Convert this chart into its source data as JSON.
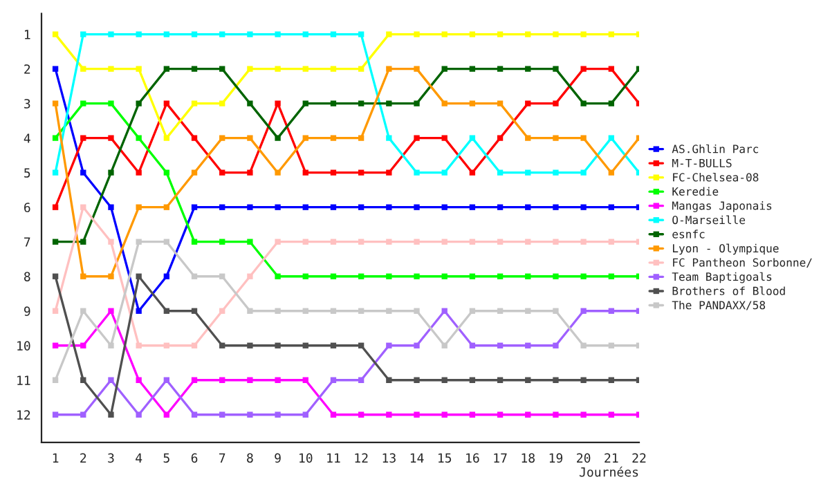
{
  "chart_data": {
    "type": "line",
    "xlabel": "Journées",
    "x": [
      1,
      2,
      3,
      4,
      5,
      6,
      7,
      8,
      9,
      10,
      11,
      12,
      13,
      14,
      15,
      16,
      17,
      18,
      19,
      20,
      21,
      22
    ],
    "xlim": [
      0.5,
      22
    ],
    "xticks": [
      1,
      2,
      3,
      4,
      5,
      6,
      7,
      8,
      9,
      10,
      11,
      12,
      13,
      14,
      15,
      16,
      17,
      18,
      19,
      20,
      21,
      22
    ],
    "ylim": [
      12.8,
      0.4
    ],
    "yticks": [
      1,
      2,
      3,
      4,
      5,
      6,
      7,
      8,
      9,
      10,
      11,
      12
    ],
    "grid": false,
    "legend": "right",
    "marker": "square",
    "line_style": "solid",
    "series": [
      {
        "name": "AS.Ghlin Parc",
        "color": "#0000ff",
        "values": [
          2,
          5,
          6,
          9,
          8,
          6,
          6,
          6,
          6,
          6,
          6,
          6,
          6,
          6,
          6,
          6,
          6,
          6,
          6,
          6,
          6,
          6
        ]
      },
      {
        "name": "M-T-BULLS",
        "color": "#ff0000",
        "values": [
          6,
          4,
          4,
          5,
          3,
          4,
          5,
          5,
          3,
          5,
          5,
          5,
          5,
          4,
          4,
          5,
          4,
          3,
          3,
          2,
          2,
          3
        ]
      },
      {
        "name": "FC-Chelsea-08",
        "color": "#ffff00",
        "values": [
          1,
          2,
          2,
          2,
          4,
          3,
          3,
          2,
          2,
          2,
          2,
          2,
          1,
          1,
          1,
          1,
          1,
          1,
          1,
          1,
          1,
          1
        ]
      },
      {
        "name": "Keredie",
        "color": "#00ff00",
        "values": [
          4,
          3,
          3,
          4,
          5,
          7,
          7,
          7,
          8,
          8,
          8,
          8,
          8,
          8,
          8,
          8,
          8,
          8,
          8,
          8,
          8,
          8
        ]
      },
      {
        "name": "Mangas Japonais",
        "color": "#ff00ff",
        "values": [
          10,
          10,
          9,
          11,
          12,
          11,
          11,
          11,
          11,
          11,
          12,
          12,
          12,
          12,
          12,
          12,
          12,
          12,
          12,
          12,
          12,
          12
        ]
      },
      {
        "name": "O-Marseille",
        "color": "#00ffff",
        "values": [
          5,
          1,
          1,
          1,
          1,
          1,
          1,
          1,
          1,
          1,
          1,
          1,
          4,
          5,
          5,
          4,
          5,
          5,
          5,
          5,
          4,
          5
        ]
      },
      {
        "name": "esnfc",
        "color": "#006400",
        "values": [
          7,
          7,
          5,
          3,
          2,
          2,
          2,
          3,
          4,
          3,
          3,
          3,
          3,
          3,
          2,
          2,
          2,
          2,
          2,
          3,
          3,
          2
        ]
      },
      {
        "name": "Lyon - Olympique",
        "color": "#ff9900",
        "values": [
          3,
          8,
          8,
          6,
          6,
          5,
          4,
          4,
          5,
          4,
          4,
          4,
          2,
          2,
          3,
          3,
          3,
          4,
          4,
          4,
          5,
          4
        ]
      },
      {
        "name": "FC Pantheon Sorbonne/",
        "color": "#ffc0c0",
        "values": [
          9,
          6,
          7,
          10,
          10,
          10,
          9,
          8,
          7,
          7,
          7,
          7,
          7,
          7,
          7,
          7,
          7,
          7,
          7,
          7,
          7,
          7
        ]
      },
      {
        "name": "Team Baptigoals",
        "color": "#a060ff",
        "values": [
          12,
          12,
          11,
          12,
          11,
          12,
          12,
          12,
          12,
          12,
          11,
          11,
          10,
          10,
          9,
          10,
          10,
          10,
          10,
          9,
          9,
          9
        ]
      },
      {
        "name": "Brothers of Blood",
        "color": "#505050",
        "values": [
          8,
          11,
          12,
          8,
          9,
          9,
          10,
          10,
          10,
          10,
          10,
          10,
          11,
          11,
          11,
          11,
          11,
          11,
          11,
          11,
          11,
          11
        ]
      },
      {
        "name": "The PANDAXX/58",
        "color": "#c8c8c8",
        "values": [
          11,
          9,
          10,
          7,
          7,
          8,
          8,
          9,
          9,
          9,
          9,
          9,
          9,
          9,
          10,
          9,
          9,
          9,
          9,
          10,
          10,
          10
        ]
      }
    ]
  }
}
